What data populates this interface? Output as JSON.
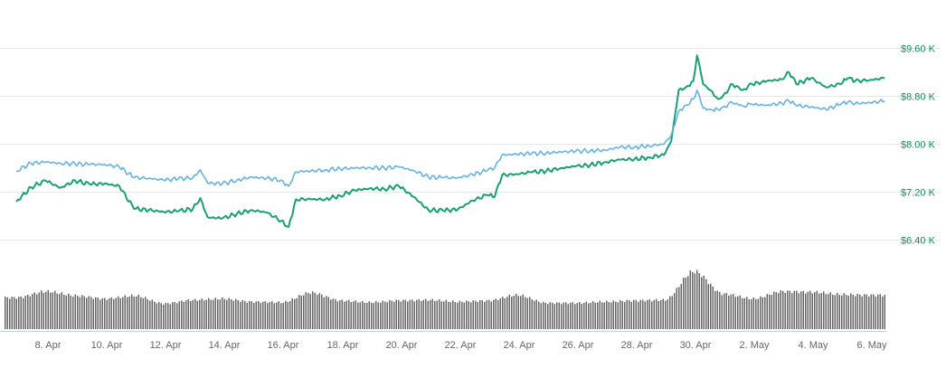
{
  "chart_data": {
    "type": "line",
    "title": "",
    "xlabel": "",
    "ylabel": "",
    "x_range": [
      "2018-04-07",
      "2018-05-06"
    ],
    "ylim": [
      6000,
      9800
    ],
    "y_ticks": [
      6400,
      7200,
      8000,
      8800,
      9600
    ],
    "y_tick_labels": [
      "$6.40 K",
      "$7.20 K",
      "$8.00 K",
      "$8.80 K",
      "$9.60 K"
    ],
    "x_tick_labels": [
      "8. Apr",
      "10. Apr",
      "12. Apr",
      "14. Apr",
      "16. Apr",
      "18. Apr",
      "20. Apr",
      "22. Apr",
      "24. Apr",
      "26. Apr",
      "28. Apr",
      "30. Apr",
      "2. May",
      "4. May",
      "6. May"
    ],
    "grid": true,
    "grid_axis": "y",
    "y_axis_side": "right",
    "legend": "none",
    "colors": {
      "series_green": "#17a175",
      "series_blue": "#64b3e4",
      "volume": "#666666",
      "axis_green": "#17885f",
      "grid": "#e6e6e6"
    },
    "series": [
      {
        "color": "#17a175",
        "points": [
          [
            "2018-04-07",
            7040
          ],
          [
            "2018-04-07T12:00",
            7280
          ],
          [
            "2018-04-08",
            7390
          ],
          [
            "2018-04-08T12:00",
            7270
          ],
          [
            "2018-04-09",
            7390
          ],
          [
            "2018-04-09T12:00",
            7330
          ],
          [
            "2018-04-10",
            7340
          ],
          [
            "2018-04-10T12:00",
            7300
          ],
          [
            "2018-04-11",
            6920
          ],
          [
            "2018-04-11T12:00",
            6900
          ],
          [
            "2018-04-12",
            6870
          ],
          [
            "2018-04-12T12:00",
            6880
          ],
          [
            "2018-04-13",
            6920
          ],
          [
            "2018-04-13T06:00",
            7100
          ],
          [
            "2018-04-13T12:00",
            6780
          ],
          [
            "2018-04-14",
            6760
          ],
          [
            "2018-04-14T12:00",
            6840
          ],
          [
            "2018-04-15",
            6900
          ],
          [
            "2018-04-15T12:00",
            6860
          ],
          [
            "2018-04-16",
            6720
          ],
          [
            "2018-04-16T06:00",
            6620
          ],
          [
            "2018-04-16T12:00",
            7080
          ],
          [
            "2018-04-17",
            7080
          ],
          [
            "2018-04-17T12:00",
            7080
          ],
          [
            "2018-04-18",
            7140
          ],
          [
            "2018-04-18T12:00",
            7230
          ],
          [
            "2018-04-19",
            7260
          ],
          [
            "2018-04-19T12:00",
            7250
          ],
          [
            "2018-04-20",
            7300
          ],
          [
            "2018-04-20T12:00",
            7120
          ],
          [
            "2018-04-21",
            6900
          ],
          [
            "2018-04-21T12:00",
            6890
          ],
          [
            "2018-04-22",
            6910
          ],
          [
            "2018-04-22T12:00",
            7060
          ],
          [
            "2018-04-23",
            7150
          ],
          [
            "2018-04-23T06:00",
            7120
          ],
          [
            "2018-04-23T12:00",
            7480
          ],
          [
            "2018-04-24",
            7500
          ],
          [
            "2018-04-24T12:00",
            7530
          ],
          [
            "2018-04-25",
            7550
          ],
          [
            "2018-04-25T12:00",
            7600
          ],
          [
            "2018-04-26",
            7630
          ],
          [
            "2018-04-26T12:00",
            7650
          ],
          [
            "2018-04-27",
            7700
          ],
          [
            "2018-04-27T12:00",
            7740
          ],
          [
            "2018-04-28",
            7750
          ],
          [
            "2018-04-28T12:00",
            7780
          ],
          [
            "2018-04-29",
            7820
          ],
          [
            "2018-04-29T06:00",
            8050
          ],
          [
            "2018-04-29T12:00",
            8900
          ],
          [
            "2018-04-29T18:00",
            8950
          ],
          [
            "2018-04-30",
            9050
          ],
          [
            "2018-04-30T03:00",
            9480
          ],
          [
            "2018-04-30T08:00",
            9000
          ],
          [
            "2018-04-30T14:00",
            8900
          ],
          [
            "2018-04-30T20:00",
            8750
          ],
          [
            "2018-05-01",
            8800
          ],
          [
            "2018-05-01T08:00",
            9000
          ],
          [
            "2018-05-01T16:00",
            8900
          ],
          [
            "2018-05-02",
            9000
          ],
          [
            "2018-05-02T12:00",
            9050
          ],
          [
            "2018-05-03",
            9080
          ],
          [
            "2018-05-03T06:00",
            9200
          ],
          [
            "2018-05-03T12:00",
            9000
          ],
          [
            "2018-05-04",
            9100
          ],
          [
            "2018-05-04T12:00",
            8950
          ],
          [
            "2018-05-05",
            9000
          ],
          [
            "2018-05-05T06:00",
            9100
          ],
          [
            "2018-05-05T12:00",
            9050
          ],
          [
            "2018-05-06",
            9070
          ],
          [
            "2018-05-06T12:00",
            9100
          ]
        ]
      },
      {
        "color": "#64b3e4",
        "points": [
          [
            "2018-04-07",
            7550
          ],
          [
            "2018-04-07T12:00",
            7680
          ],
          [
            "2018-04-08",
            7700
          ],
          [
            "2018-04-08T12:00",
            7680
          ],
          [
            "2018-04-09",
            7670
          ],
          [
            "2018-04-09T12:00",
            7660
          ],
          [
            "2018-04-10",
            7660
          ],
          [
            "2018-04-10T12:00",
            7620
          ],
          [
            "2018-04-11",
            7440
          ],
          [
            "2018-04-11T12:00",
            7430
          ],
          [
            "2018-04-12",
            7400
          ],
          [
            "2018-04-12T12:00",
            7420
          ],
          [
            "2018-04-13",
            7440
          ],
          [
            "2018-04-13T06:00",
            7570
          ],
          [
            "2018-04-13T12:00",
            7350
          ],
          [
            "2018-04-14",
            7340
          ],
          [
            "2018-04-14T12:00",
            7400
          ],
          [
            "2018-04-15",
            7450
          ],
          [
            "2018-04-15T12:00",
            7430
          ],
          [
            "2018-04-16",
            7400
          ],
          [
            "2018-04-16T06:00",
            7300
          ],
          [
            "2018-04-16T12:00",
            7540
          ],
          [
            "2018-04-17",
            7550
          ],
          [
            "2018-04-17T12:00",
            7570
          ],
          [
            "2018-04-18",
            7590
          ],
          [
            "2018-04-18T12:00",
            7600
          ],
          [
            "2018-04-19",
            7610
          ],
          [
            "2018-04-19T12:00",
            7600
          ],
          [
            "2018-04-20",
            7620
          ],
          [
            "2018-04-20T12:00",
            7560
          ],
          [
            "2018-04-21",
            7450
          ],
          [
            "2018-04-21T12:00",
            7440
          ],
          [
            "2018-04-22",
            7440
          ],
          [
            "2018-04-22T12:00",
            7490
          ],
          [
            "2018-04-23",
            7560
          ],
          [
            "2018-04-23T06:00",
            7600
          ],
          [
            "2018-04-23T12:00",
            7820
          ],
          [
            "2018-04-24",
            7830
          ],
          [
            "2018-04-24T12:00",
            7840
          ],
          [
            "2018-04-25",
            7850
          ],
          [
            "2018-04-25T12:00",
            7870
          ],
          [
            "2018-04-26",
            7880
          ],
          [
            "2018-04-26T12:00",
            7890
          ],
          [
            "2018-04-27",
            7900
          ],
          [
            "2018-04-27T12:00",
            7950
          ],
          [
            "2018-04-28",
            7950
          ],
          [
            "2018-04-28T12:00",
            7970
          ],
          [
            "2018-04-29",
            8000
          ],
          [
            "2018-04-29T06:00",
            8150
          ],
          [
            "2018-04-29T12:00",
            8550
          ],
          [
            "2018-04-29T18:00",
            8650
          ],
          [
            "2018-04-30",
            8750
          ],
          [
            "2018-04-30T03:00",
            8900
          ],
          [
            "2018-04-30T08:00",
            8600
          ],
          [
            "2018-04-30T14:00",
            8580
          ],
          [
            "2018-04-30T20:00",
            8580
          ],
          [
            "2018-05-01",
            8620
          ],
          [
            "2018-05-01T08:00",
            8690
          ],
          [
            "2018-05-01T16:00",
            8640
          ],
          [
            "2018-05-02",
            8660
          ],
          [
            "2018-05-02T12:00",
            8650
          ],
          [
            "2018-05-03",
            8680
          ],
          [
            "2018-05-03T06:00",
            8720
          ],
          [
            "2018-05-03T12:00",
            8640
          ],
          [
            "2018-05-04",
            8620
          ],
          [
            "2018-05-04T12:00",
            8580
          ],
          [
            "2018-05-05",
            8660
          ],
          [
            "2018-05-05T06:00",
            8700
          ],
          [
            "2018-05-05T12:00",
            8680
          ],
          [
            "2018-05-06",
            8690
          ],
          [
            "2018-05-06T12:00",
            8720
          ]
        ]
      }
    ],
    "volume": {
      "color": "#666666",
      "relative_levels": [
        [
          "2018-04-07",
          0.52
        ],
        [
          "2018-04-08",
          0.62
        ],
        [
          "2018-04-09",
          0.55
        ],
        [
          "2018-04-10",
          0.5
        ],
        [
          "2018-04-11",
          0.55
        ],
        [
          "2018-04-12",
          0.42
        ],
        [
          "2018-04-13",
          0.48
        ],
        [
          "2018-04-14",
          0.5
        ],
        [
          "2018-04-15",
          0.45
        ],
        [
          "2018-04-16",
          0.44
        ],
        [
          "2018-04-17",
          0.6
        ],
        [
          "2018-04-18",
          0.47
        ],
        [
          "2018-04-19",
          0.44
        ],
        [
          "2018-04-20",
          0.47
        ],
        [
          "2018-04-21",
          0.48
        ],
        [
          "2018-04-22",
          0.45
        ],
        [
          "2018-04-23",
          0.47
        ],
        [
          "2018-04-24",
          0.56
        ],
        [
          "2018-04-25",
          0.43
        ],
        [
          "2018-04-26",
          0.43
        ],
        [
          "2018-04-27",
          0.45
        ],
        [
          "2018-04-28",
          0.47
        ],
        [
          "2018-04-29",
          0.48
        ],
        [
          "2018-04-30",
          0.95
        ],
        [
          "2018-05-01",
          0.58
        ],
        [
          "2018-05-02",
          0.5
        ],
        [
          "2018-05-03",
          0.62
        ],
        [
          "2018-05-04",
          0.61
        ],
        [
          "2018-05-05",
          0.57
        ],
        [
          "2018-05-06",
          0.56
        ]
      ]
    }
  }
}
